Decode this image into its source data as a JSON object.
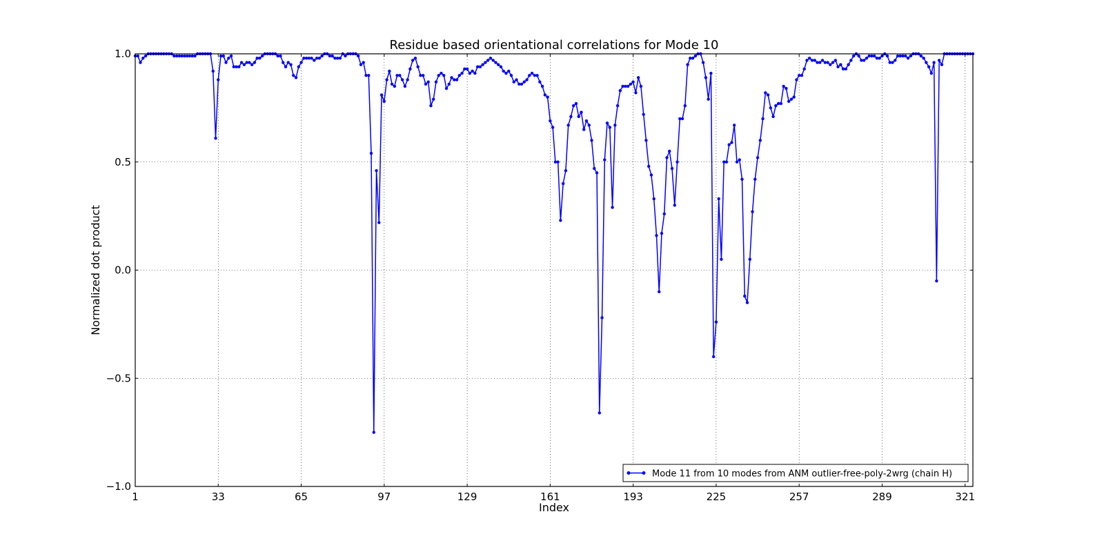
{
  "chart_data": {
    "type": "line",
    "title": "Residue based orientational correlations for Mode 10",
    "xlabel": "Index",
    "ylabel": "Normalized dot product",
    "xlim": [
      1,
      324
    ],
    "ylim": [
      -1.0,
      1.0
    ],
    "xticks": [
      1,
      33,
      65,
      97,
      129,
      161,
      193,
      225,
      257,
      289,
      321
    ],
    "yticks": [
      -1.0,
      -0.5,
      0.0,
      0.5,
      1.0
    ],
    "ytick_labels": [
      "−1.0",
      "−0.5",
      "0.0",
      "0.5",
      "1.0"
    ],
    "grid": true,
    "legend_position": "lower-right",
    "colors": {
      "series": "#0000ff"
    },
    "series": [
      {
        "name": "Mode 11 from 10 modes from ANM outlier-free-poly-2wrg (chain H)",
        "x_start": 1,
        "values": [
          0.99,
          0.99,
          0.96,
          0.98,
          0.99,
          1.0,
          1.0,
          1.0,
          1.0,
          1.0,
          1.0,
          1.0,
          1.0,
          1.0,
          1.0,
          0.99,
          0.99,
          0.99,
          0.99,
          0.99,
          0.99,
          0.99,
          0.99,
          0.99,
          1.0,
          1.0,
          1.0,
          1.0,
          1.0,
          1.0,
          0.92,
          0.61,
          0.88,
          0.99,
          0.99,
          0.96,
          0.98,
          0.99,
          0.94,
          0.94,
          0.94,
          0.96,
          0.95,
          0.96,
          0.96,
          0.95,
          0.96,
          0.98,
          0.98,
          0.99,
          1.0,
          1.0,
          1.0,
          1.0,
          1.0,
          0.99,
          0.99,
          0.96,
          0.94,
          0.96,
          0.95,
          0.9,
          0.89,
          0.94,
          0.96,
          0.98,
          0.98,
          0.98,
          0.98,
          0.97,
          0.98,
          0.98,
          0.99,
          1.0,
          1.0,
          0.99,
          0.99,
          0.98,
          0.98,
          0.98,
          1.0,
          0.99,
          1.0,
          1.0,
          1.0,
          1.0,
          0.99,
          0.95,
          0.96,
          0.9,
          0.9,
          0.54,
          -0.75,
          0.46,
          0.22,
          0.81,
          0.78,
          0.88,
          0.92,
          0.86,
          0.85,
          0.9,
          0.9,
          0.88,
          0.85,
          0.88,
          0.93,
          0.97,
          0.98,
          0.94,
          0.9,
          0.9,
          0.86,
          0.87,
          0.76,
          0.79,
          0.87,
          0.9,
          0.91,
          0.9,
          0.84,
          0.86,
          0.89,
          0.88,
          0.88,
          0.9,
          0.91,
          0.93,
          0.93,
          0.91,
          0.92,
          0.91,
          0.94,
          0.94,
          0.95,
          0.96,
          0.97,
          0.98,
          0.97,
          0.96,
          0.95,
          0.94,
          0.92,
          0.91,
          0.92,
          0.9,
          0.87,
          0.88,
          0.86,
          0.86,
          0.87,
          0.88,
          0.9,
          0.91,
          0.9,
          0.9,
          0.87,
          0.85,
          0.81,
          0.8,
          0.69,
          0.66,
          0.5,
          0.5,
          0.23,
          0.4,
          0.46,
          0.67,
          0.71,
          0.76,
          0.77,
          0.71,
          0.73,
          0.65,
          0.69,
          0.67,
          0.6,
          0.47,
          0.45,
          -0.66,
          -0.22,
          0.51,
          0.68,
          0.66,
          0.29,
          0.67,
          0.76,
          0.83,
          0.85,
          0.85,
          0.85,
          0.86,
          0.87,
          0.82,
          0.89,
          0.85,
          0.72,
          0.6,
          0.48,
          0.44,
          0.33,
          0.16,
          -0.1,
          0.17,
          0.26,
          0.52,
          0.55,
          0.47,
          0.3,
          0.5,
          0.7,
          0.7,
          0.76,
          0.95,
          0.98,
          0.98,
          0.99,
          1.0,
          1.0,
          0.96,
          0.89,
          0.79,
          0.91,
          -0.4,
          -0.24,
          0.33,
          0.05,
          0.5,
          0.5,
          0.58,
          0.59,
          0.67,
          0.5,
          0.51,
          0.42,
          -0.12,
          -0.15,
          0.05,
          0.27,
          0.42,
          0.52,
          0.6,
          0.7,
          0.82,
          0.81,
          0.75,
          0.71,
          0.76,
          0.77,
          0.77,
          0.85,
          0.84,
          0.78,
          0.79,
          0.8,
          0.88,
          0.9,
          0.9,
          0.93,
          0.97,
          0.98,
          0.97,
          0.97,
          0.96,
          0.96,
          0.97,
          0.96,
          0.96,
          0.95,
          0.96,
          0.97,
          0.94,
          0.95,
          0.93,
          0.93,
          0.95,
          0.97,
          0.99,
          1.0,
          0.99,
          0.97,
          0.97,
          0.98,
          0.99,
          0.99,
          0.99,
          0.98,
          0.98,
          0.99,
          1.0,
          0.99,
          0.96,
          0.96,
          0.97,
          0.99,
          0.99,
          0.99,
          0.99,
          0.98,
          0.99,
          1.0,
          1.0,
          1.0,
          0.99,
          0.98,
          0.96,
          0.94,
          0.91,
          0.96,
          -0.05,
          0.97,
          0.95,
          1.0,
          1.0,
          1.0,
          1.0,
          1.0,
          1.0,
          1.0,
          1.0,
          1.0,
          1.0,
          1.0,
          1.0
        ]
      }
    ]
  }
}
